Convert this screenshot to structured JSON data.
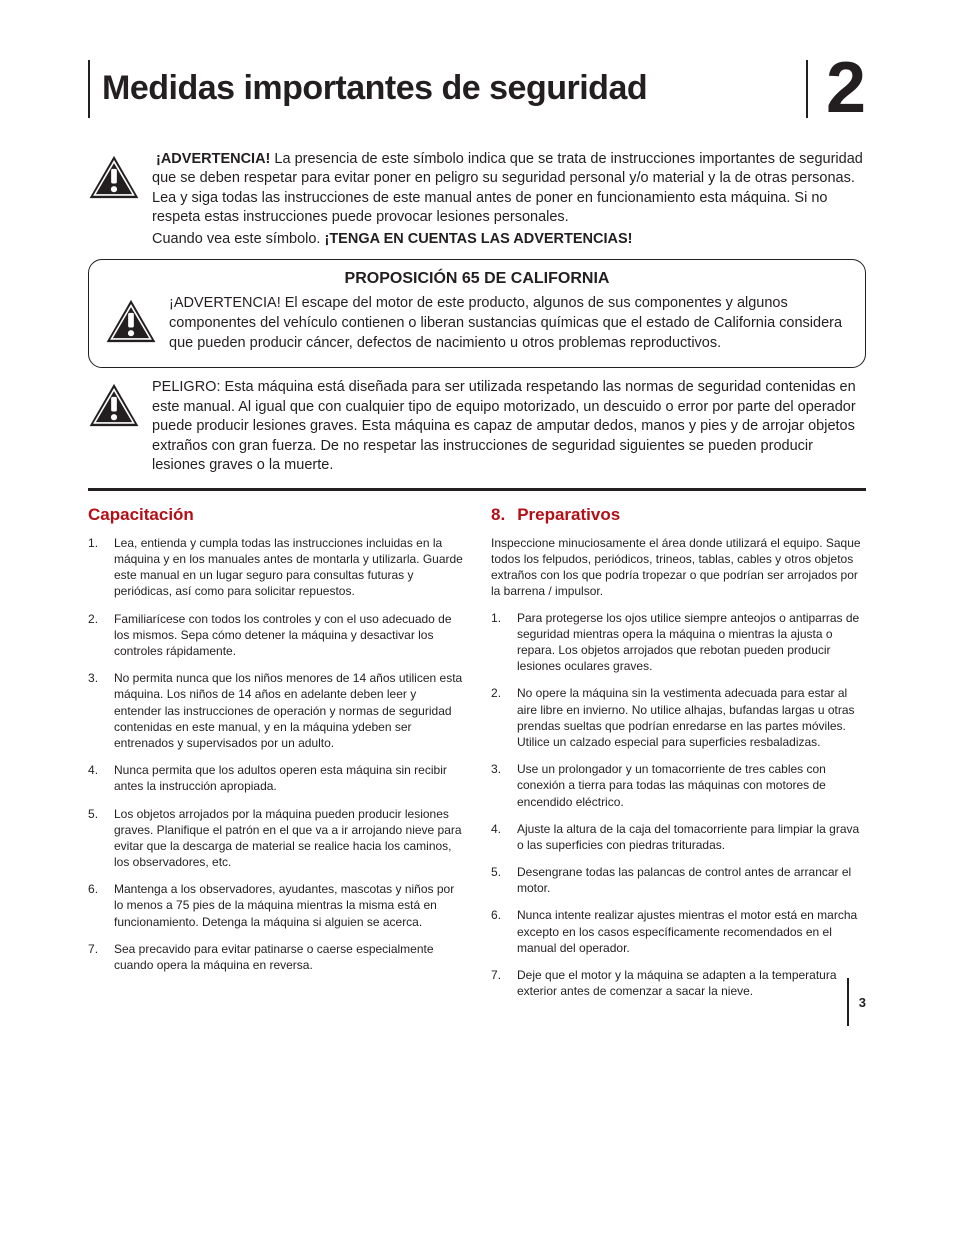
{
  "header": {
    "title": "Medidas importantes de seguridad",
    "chapter_number": "2"
  },
  "advertencia": {
    "label": "¡ADVERTENCIA!",
    "text": "La presencia de este símbolo indica que se trata de instrucciones importantes de seguridad que se deben respetar para evitar poner en peligro su seguridad personal y/o material y la de otras personas. Lea y siga todas las instrucciones de este manual antes de poner en funcionamiento esta máquina. Si no respeta estas instrucciones puede provocar lesiones personales.",
    "footer_prefix": "Cuando vea este símbolo.",
    "footer_bold": "¡TENGA EN CUENTAS LAS ADVERTENCIAS!"
  },
  "prop65": {
    "title": "PROPOSICIÓN 65 DE CALIFORNIA",
    "label": "¡ADVERTENCIA!",
    "text": "El escape del motor de este producto, algunos de sus componentes y algunos componentes del vehículo contienen o liberan sustancias químicas que el estado de California considera que pueden producir cáncer, defectos de nacimiento u otros problemas reproductivos."
  },
  "peligro": {
    "label": "PELIGRO:",
    "text": "Esta máquina está diseñada para ser utilizada respetando las normas de seguridad contenidas en este manual. Al igual que con cualquier tipo de equipo motorizado, un descuido o error por parte del operador puede producir lesiones graves. Esta máquina es capaz de amputar dedos, manos y pies y de arrojar objetos extraños con gran fuerza. De no respetar las instrucciones de seguridad siguientes se pueden producir lesiones graves o la muerte."
  },
  "capacitacion": {
    "heading": "Capacitación",
    "items": [
      "Lea, entienda y cumpla todas las instrucciones incluidas en la máquina y en los manuales antes de montarla y utilizarla. Guarde este manual en un lugar seguro para consultas futuras y periódicas, así como para solicitar repuestos.",
      "Familiarícese con todos los controles y con el uso adecuado de los mismos. Sepa cómo detener la máquina y desactivar los controles rápidamente.",
      "No permita nunca que los niños menores de 14 años utilicen esta máquina. Los niños de 14 años en adelante deben leer y entender las instrucciones de operación y normas de seguridad contenidas en este manual, y en la máquina ydeben ser entrenados y supervisados por un adulto.",
      "Nunca permita que los adultos operen esta máquina sin recibir antes la instrucción apropiada.",
      "Los objetos arrojados por la máquina pueden producir lesiones graves. Planifique el patrón en el que va a ir arrojando nieve para evitar que la descarga de material se realice hacia los caminos, los observadores, etc.",
      "Mantenga a los observadores, ayudantes, mascotas y niños por lo menos a 75 pies de la máquina mientras la misma está en funcionamiento. Detenga la máquina si alguien se acerca.",
      "Sea precavido para evitar patinarse o caerse especialmente cuando opera la máquina en reversa."
    ]
  },
  "preparativos": {
    "heading_num": "8.",
    "heading": "Preparativos",
    "intro": "Inspeccione minuciosamente el área donde utilizará el equipo. Saque todos los felpudos, periódicos, trineos, tablas, cables y otros objetos extraños con los que podría tropezar o que podrían ser arrojados por la barrena / impulsor.",
    "items": [
      "Para protegerse los ojos utilice siempre anteojos o antiparras de seguridad mientras opera la máquina o mientras la ajusta o repara. Los objetos arrojados que rebotan pueden producir lesiones oculares graves.",
      "No opere la máquina sin la vestimenta adecuada para estar al aire libre en invierno. No utilice alhajas, bufandas largas u otras prendas sueltas que podrían enredarse en las partes móviles. Utilice un calzado especial para superficies resbaladizas.",
      "Use un prolongador y un tomacorriente de tres cables con conexión a tierra para todas las máquinas con motores de encendido eléctrico.",
      "Ajuste la altura de la caja del tomacorriente para limpiar la grava o las superficies con piedras trituradas.",
      "Desengrane todas las palancas de control antes de arrancar el motor.",
      "Nunca intente realizar ajustes mientras el motor está en marcha excepto en los casos específicamente recomendados en el manual del operador.",
      "Deje que el motor y la máquina se adapten a la temperatura exterior antes de comenzar a sacar la nieve."
    ]
  },
  "colors": {
    "text": "#231f20",
    "accent_red": "#b30f16",
    "background": "#ffffff"
  },
  "page_number": "3"
}
